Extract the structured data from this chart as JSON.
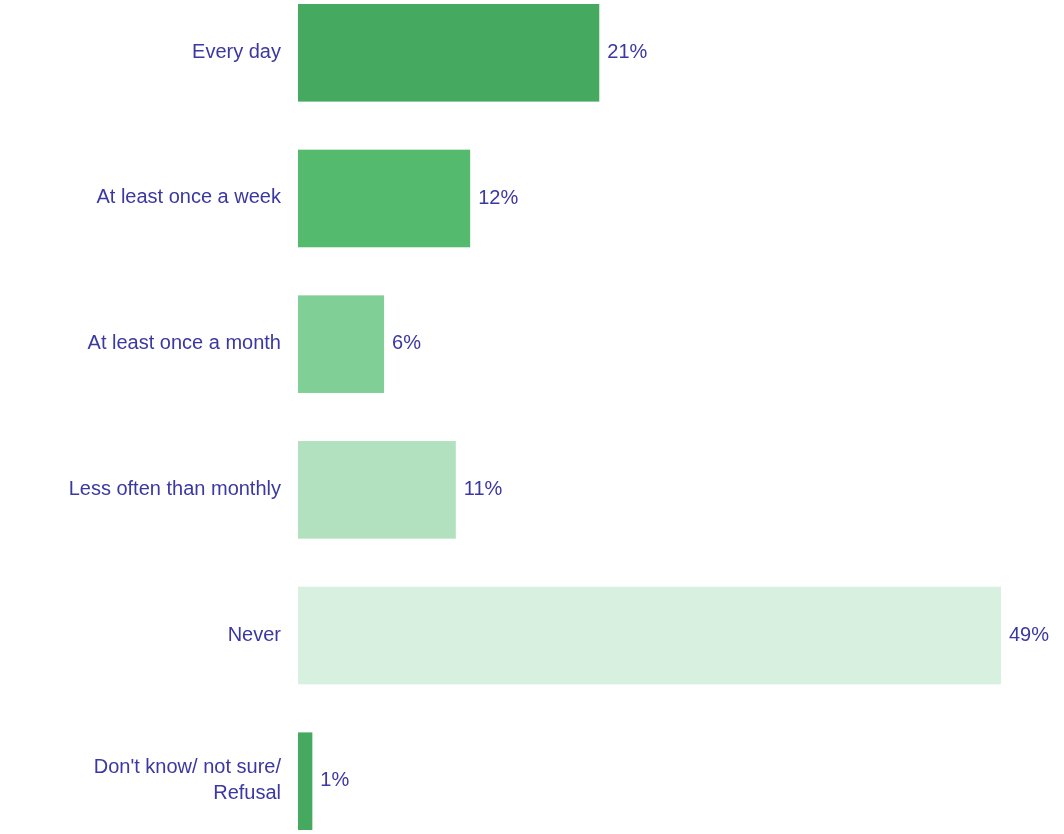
{
  "chart_data": {
    "type": "bar",
    "orientation": "horizontal",
    "categories": [
      "Every day",
      "At least once a week",
      "At least once a month",
      "Less often than monthly",
      "Never",
      "Don't know/ not sure/ Refusal"
    ],
    "values": [
      21,
      12,
      6,
      11,
      49,
      1
    ],
    "colors": [
      "#45aa60",
      "#54bb6e",
      "#80cf96",
      "#b2e1c0",
      "#d8f0e0",
      "#45aa60"
    ],
    "value_labels": [
      "21%",
      "12%",
      "6%",
      "11%",
      "49%",
      "1%"
    ]
  }
}
